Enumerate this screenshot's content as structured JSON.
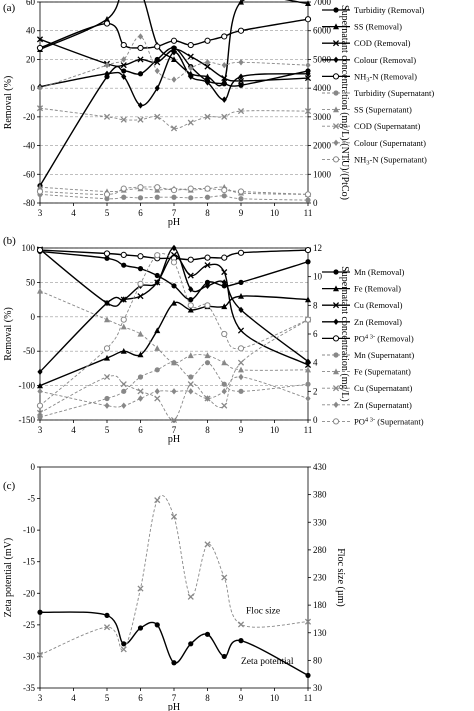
{
  "chart_data": [
    {
      "panel": "(a)",
      "type": "line",
      "xlabel": "pH",
      "ylabel": "Removal (%)",
      "y2label": "Supernatant concentration (mg/L)/(NTU)/(PtCo)",
      "xlim": [
        3,
        11
      ],
      "ylim": [
        -80,
        60
      ],
      "y2lim": [
        0,
        7000
      ],
      "xticks": [
        "3",
        "4",
        "5",
        "6",
        "7",
        "8",
        "9",
        "10",
        "11"
      ],
      "yticks": [
        "-80",
        "-60",
        "-40",
        "-20",
        "0",
        "20",
        "40",
        "60"
      ],
      "y2ticks": [
        "0",
        "1000",
        "2000",
        "3000",
        "4000",
        "5000",
        "6000",
        "7000"
      ],
      "grid": "horizontal dashed",
      "legend_position": "right",
      "series": [
        {
          "name": "Turbidity (Removal)",
          "axis": "left",
          "style": "solid",
          "marker": "circle",
          "x": [
            3,
            5,
            5.5,
            6,
            6.5,
            7,
            7.5,
            8,
            8.5,
            9,
            11
          ],
          "y": [
            -68,
            8,
            12,
            10,
            20,
            28,
            15,
            5,
            3,
            2,
            12
          ]
        },
        {
          "name": "SS (Removal)",
          "axis": "left",
          "style": "solid",
          "marker": "triangle",
          "x": [
            3,
            5,
            5.5,
            6,
            6.5,
            7,
            7.5,
            8,
            8.5,
            9,
            11
          ],
          "y": [
            27,
            48,
            70,
            68,
            30,
            20,
            10,
            8,
            5,
            60,
            59
          ]
        },
        {
          "name": "COD (Removal)",
          "axis": "left",
          "style": "solid",
          "marker": "x",
          "x": [
            3,
            5,
            5.5,
            6,
            6.5,
            7,
            7.5,
            8,
            8.5,
            9,
            11
          ],
          "y": [
            34,
            17,
            16,
            20,
            18,
            27,
            22,
            15,
            7,
            5,
            7
          ]
        },
        {
          "name": "Colour (Removal)",
          "axis": "left",
          "style": "solid",
          "marker": "diamond",
          "x": [
            3,
            5,
            5.5,
            6,
            6.5,
            7,
            7.5,
            8,
            8.5,
            9,
            11
          ],
          "y": [
            1,
            10,
            8,
            -12,
            0,
            25,
            8,
            4,
            -8,
            8,
            10
          ]
        },
        {
          "name": "NH3-N (Removal)",
          "axis": "left",
          "style": "solid",
          "marker": "open-circle",
          "x": [
            3,
            5,
            5.5,
            6,
            6.5,
            7,
            7.5,
            8,
            8.5,
            9,
            11
          ],
          "y": [
            28,
            45,
            30,
            28,
            29,
            33,
            30,
            33,
            36,
            40,
            48
          ]
        },
        {
          "name": "Turbidity (Supernatant)",
          "axis": "right",
          "style": "dashed",
          "marker": "circle",
          "x": [
            3,
            5,
            5.5,
            6,
            6.5,
            7,
            7.5,
            8,
            8.5,
            9,
            11
          ],
          "y": [
            300,
            150,
            200,
            180,
            200,
            200,
            180,
            200,
            250,
            150,
            100
          ]
        },
        {
          "name": "SS (Supernatant)",
          "axis": "right",
          "style": "dashed",
          "marker": "triangle",
          "x": [
            3,
            5,
            5.5,
            6,
            6.5,
            7,
            7.5,
            8,
            8.5,
            9,
            11
          ],
          "y": [
            550,
            400,
            450,
            500,
            450,
            500,
            450,
            500,
            550,
            350,
            300
          ]
        },
        {
          "name": "COD (Supernatant)",
          "axis": "right",
          "style": "dashed",
          "marker": "x",
          "x": [
            3,
            5,
            5.5,
            6,
            6.5,
            7,
            7.5,
            8,
            8.5,
            9,
            11
          ],
          "y": [
            3300,
            3000,
            2900,
            2900,
            3000,
            2600,
            2800,
            3000,
            3000,
            3200,
            3200
          ]
        },
        {
          "name": "Colour (Supernatant)",
          "axis": "right",
          "style": "dashed",
          "marker": "diamond",
          "x": [
            3,
            5,
            5.5,
            6,
            6.5,
            7,
            7.5,
            8,
            8.5,
            9,
            11
          ],
          "y": [
            4000,
            4800,
            5000,
            5800,
            4600,
            4300,
            4700,
            4900,
            4800,
            4900,
            4800
          ]
        },
        {
          "name": "NH3-N (Supernatant)",
          "axis": "right",
          "style": "dashed",
          "marker": "open-circle",
          "x": [
            3,
            5,
            5.5,
            6,
            6.5,
            7,
            7.5,
            8,
            8.5,
            9,
            11
          ],
          "y": [
            400,
            300,
            500,
            550,
            550,
            450,
            500,
            500,
            450,
            400,
            300
          ]
        }
      ]
    },
    {
      "panel": "(b)",
      "type": "line",
      "xlabel": "pH",
      "ylabel": "Removal (%)",
      "y2label": "Supernatant concentration (mg/L)",
      "xlim": [
        3,
        11
      ],
      "ylim": [
        -150,
        100
      ],
      "y2lim": [
        0,
        12
      ],
      "xticks": [
        "3",
        "4",
        "5",
        "6",
        "7",
        "8",
        "9",
        "10",
        "11"
      ],
      "yticks": [
        "-150",
        "-100",
        "-50",
        "0",
        "50",
        "100"
      ],
      "y2ticks": [
        "0",
        "2",
        "4",
        "6",
        "8",
        "10",
        "12"
      ],
      "grid": "horizontal dashed",
      "legend_position": "right",
      "series": [
        {
          "name": "Mn (Removal)",
          "axis": "left",
          "style": "solid",
          "marker": "circle",
          "x": [
            3,
            5,
            5.5,
            6,
            6.5,
            7,
            7.5,
            8,
            8.5,
            9,
            11
          ],
          "y": [
            95,
            85,
            75,
            70,
            60,
            45,
            25,
            50,
            45,
            50,
            80
          ]
        },
        {
          "name": "Fe (Removal)",
          "axis": "left",
          "style": "solid",
          "marker": "triangle",
          "x": [
            3,
            5,
            5.5,
            6,
            6.5,
            7,
            7.5,
            8,
            8.5,
            9,
            11
          ],
          "y": [
            -100,
            -60,
            -50,
            -55,
            -20,
            20,
            10,
            15,
            15,
            30,
            25
          ]
        },
        {
          "name": "Cu (Removal)",
          "axis": "left",
          "style": "solid",
          "marker": "x",
          "x": [
            3,
            5,
            5.5,
            6,
            6.5,
            7,
            7.5,
            8,
            8.5,
            9,
            11
          ],
          "y": [
            98,
            20,
            25,
            30,
            50,
            90,
            60,
            75,
            65,
            -20,
            -70
          ]
        },
        {
          "name": "Zn (Removal)",
          "axis": "left",
          "style": "solid",
          "marker": "diamond",
          "x": [
            3,
            5,
            5.5,
            6,
            6.5,
            7,
            7.5,
            8,
            8.5,
            9,
            11
          ],
          "y": [
            -80,
            20,
            25,
            45,
            50,
            100,
            40,
            45,
            50,
            10,
            -65
          ]
        },
        {
          "name": "PO4 3- (Removal)",
          "axis": "left",
          "style": "solid",
          "marker": "open-circle",
          "x": [
            3,
            5,
            5.5,
            6,
            6.5,
            7,
            7.5,
            8,
            8.5,
            9,
            11
          ],
          "y": [
            97,
            92,
            90,
            88,
            85,
            85,
            83,
            86,
            86,
            93,
            97
          ]
        },
        {
          "name": "Mn (Supernatant)",
          "axis": "right",
          "style": "dashed",
          "marker": "circle",
          "x": [
            3,
            5,
            5.5,
            6,
            6.5,
            7,
            7.5,
            8,
            8.5,
            9,
            11
          ],
          "y": [
            0.2,
            1.5,
            2,
            3,
            3.5,
            4,
            3,
            4,
            2.5,
            2,
            2.5
          ]
        },
        {
          "name": "Fe (Supernatant)",
          "axis": "right",
          "style": "dashed",
          "marker": "triangle",
          "x": [
            3,
            5,
            5.5,
            6,
            6.5,
            7,
            7.5,
            8,
            8.5,
            9,
            11
          ],
          "y": [
            9,
            7,
            6.5,
            6,
            5,
            4,
            4.5,
            4.5,
            4,
            3.5,
            3.5
          ]
        },
        {
          "name": "Cu (Supernatant)",
          "axis": "right",
          "style": "dashed",
          "marker": "x",
          "x": [
            3,
            5,
            5.5,
            6,
            6.5,
            7,
            7.5,
            8,
            8.5,
            9,
            11
          ],
          "y": [
            0.5,
            3,
            2.5,
            2,
            1.5,
            0,
            2.5,
            1.5,
            1,
            4,
            7
          ]
        },
        {
          "name": "Zn (Supernatant)",
          "axis": "right",
          "style": "dashed",
          "marker": "diamond",
          "x": [
            3,
            5,
            5.5,
            6,
            6.5,
            7,
            7.5,
            8,
            8.5,
            9,
            11
          ],
          "y": [
            2,
            1,
            1,
            1.5,
            2,
            2,
            2,
            1.5,
            2,
            3,
            1.5
          ]
        },
        {
          "name": "PO4 3- (Supernatant)",
          "axis": "right",
          "style": "dashed",
          "marker": "open-circle",
          "x": [
            3,
            5,
            5.5,
            6,
            6.5,
            7,
            7.5,
            8,
            8.5,
            9,
            11
          ],
          "y": [
            1,
            5,
            7,
            9.5,
            11.5,
            11,
            8,
            8,
            6,
            5,
            7
          ]
        }
      ]
    },
    {
      "panel": "(c)",
      "type": "line",
      "xlabel": "pH",
      "ylabel": "Zeta potential (mV)",
      "y2label": "Floc size (µm)",
      "xlim": [
        3,
        11
      ],
      "ylim": [
        -35,
        0
      ],
      "y2lim": [
        30,
        430
      ],
      "xticks": [
        "3",
        "4",
        "5",
        "6",
        "7",
        "8",
        "9",
        "10",
        "11"
      ],
      "yticks": [
        "-35",
        "-30",
        "-25",
        "-20",
        "-15",
        "-10",
        "-5",
        "0"
      ],
      "y2ticks": [
        "30",
        "80",
        "130",
        "180",
        "230",
        "280",
        "330",
        "380",
        "430"
      ],
      "grid": "none",
      "annotations": [
        "Floc size",
        "Zeta potential"
      ],
      "series": [
        {
          "name": "Zeta potential",
          "axis": "left",
          "style": "solid",
          "marker": "circle",
          "x": [
            3,
            5,
            5.5,
            6,
            6.5,
            7,
            7.5,
            8,
            8.5,
            9,
            11
          ],
          "y": [
            -23,
            -23.5,
            -28,
            -25.5,
            -25,
            -31,
            -28,
            -26.5,
            -30,
            -27.5,
            -33
          ]
        },
        {
          "name": "Floc size",
          "axis": "right",
          "style": "dashed",
          "marker": "x",
          "x": [
            3,
            5,
            5.5,
            6,
            6.5,
            7,
            7.5,
            8,
            8.5,
            9,
            11
          ],
          "y": [
            90,
            140,
            100,
            210,
            370,
            340,
            195,
            290,
            230,
            145,
            150
          ]
        }
      ]
    }
  ]
}
